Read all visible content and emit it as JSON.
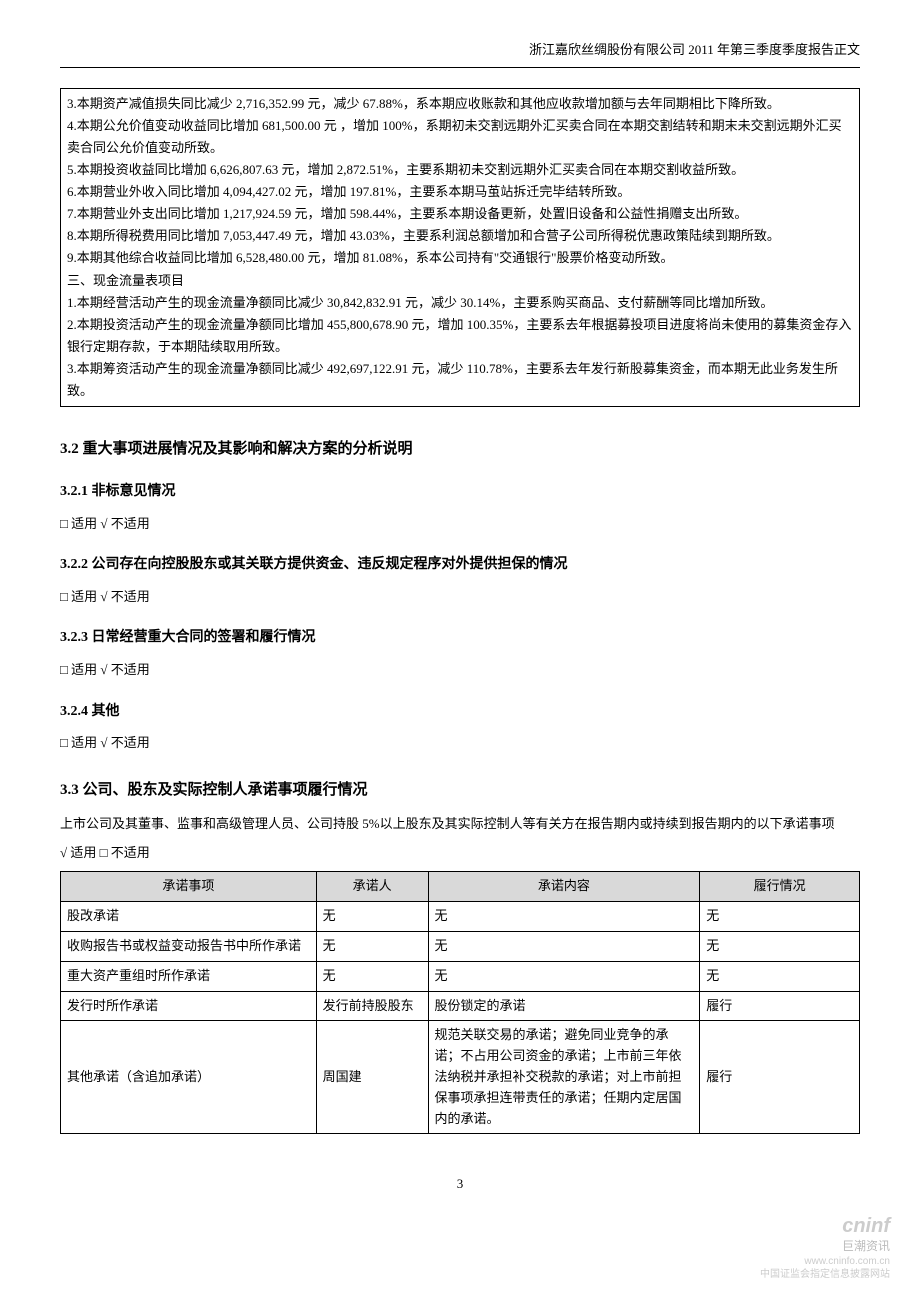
{
  "header": "浙江嘉欣丝绸股份有限公司 2011 年第三季度季度报告正文",
  "box_lines": [
    "3.本期资产减值损失同比减少 2,716,352.99 元，减少 67.88%，系本期应收账款和其他应收款增加额与去年同期相比下降所致。",
    "4.本期公允价值变动收益同比增加 681,500.00 元 ，增加 100%，系期初未交割远期外汇买卖合同在本期交割结转和期末未交割远期外汇买卖合同公允价值变动所致。",
    "5.本期投资收益同比增加 6,626,807.63 元，增加 2,872.51%，主要系期初未交割远期外汇买卖合同在本期交割收益所致。",
    "6.本期营业外收入同比增加 4,094,427.02 元，增加 197.81%，主要系本期马茧站拆迁完毕结转所致。",
    "7.本期营业外支出同比增加 1,217,924.59 元，增加 598.44%，主要系本期设备更新，处置旧设备和公益性捐赠支出所致。",
    "8.本期所得税费用同比增加 7,053,447.49 元，增加 43.03%，主要系利润总额增加和合营子公司所得税优惠政策陆续到期所致。",
    "9.本期其他综合收益同比增加 6,528,480.00 元，增加 81.08%，系本公司持有\"交通银行\"股票价格变动所致。",
    "三、现金流量表项目",
    "1.本期经营活动产生的现金流量净额同比减少 30,842,832.91 元，减少 30.14%，主要系购买商品、支付薪酬等同比增加所致。",
    "2.本期投资活动产生的现金流量净额同比增加 455,800,678.90 元，增加 100.35%，主要系去年根据募投项目进度将尚未使用的募集资金存入银行定期存款，于本期陆续取用所致。",
    "3.本期筹资活动产生的现金流量净额同比减少 492,697,122.91 元，减少 110.78%，主要系去年发行新股募集资金，而本期无此业务发生所致。"
  ],
  "h32": "3.2 重大事项进展情况及其影响和解决方案的分析说明",
  "h321": "3.2.1 非标意见情况",
  "h322": "3.2.2 公司存在向控股股东或其关联方提供资金、违反规定程序对外提供担保的情况",
  "h323": "3.2.3 日常经营重大合同的签署和履行情况",
  "h324": "3.2.4 其他",
  "h33": "3.3 公司、股东及实际控制人承诺事项履行情况",
  "applicable_na": "□ 适用 √ 不适用",
  "applicable_yes": "√ 适用 □ 不适用",
  "intro33": "上市公司及其董事、监事和高级管理人员、公司持股 5%以上股东及其实际控制人等有关方在报告期内或持续到报告期内的以下承诺事项",
  "table": {
    "headers": [
      "承诺事项",
      "承诺人",
      "承诺内容",
      "履行情况"
    ],
    "rows": [
      [
        "股改承诺",
        "无",
        "无",
        "无"
      ],
      [
        "收购报告书或权益变动报告书中所作承诺",
        "无",
        "无",
        "无"
      ],
      [
        "重大资产重组时所作承诺",
        "无",
        "无",
        "无"
      ],
      [
        "发行时所作承诺",
        "发行前持股股东",
        "股份锁定的承诺",
        "履行"
      ],
      [
        "其他承诺（含追加承诺）",
        "周国建",
        "规范关联交易的承诺；避免同业竞争的承诺；不占用公司资金的承诺；上市前三年依法纳税并承担补交税款的承诺；对上市前担保事项承担连带责任的承诺；任期内定居国内的承诺。",
        "履行"
      ]
    ]
  },
  "page_number": "3",
  "watermark": {
    "logo": "cninf",
    "site": "巨潮资讯",
    "url": "www.cninfo.com.cn",
    "desc": "中国证监会指定信息披露网站"
  }
}
